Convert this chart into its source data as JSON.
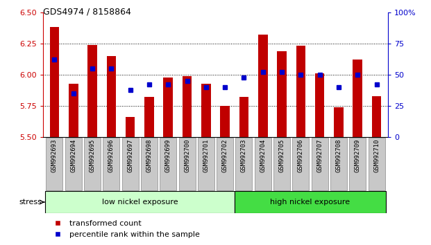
{
  "title": "GDS4974 / 8158864",
  "samples": [
    "GSM992693",
    "GSM992694",
    "GSM992695",
    "GSM992696",
    "GSM992697",
    "GSM992698",
    "GSM992699",
    "GSM992700",
    "GSM992701",
    "GSM992702",
    "GSM992703",
    "GSM992704",
    "GSM992705",
    "GSM992706",
    "GSM992707",
    "GSM992708",
    "GSM992709",
    "GSM992710"
  ],
  "bar_values": [
    6.38,
    5.93,
    6.24,
    6.15,
    5.66,
    5.82,
    5.98,
    5.99,
    5.93,
    5.75,
    5.82,
    6.32,
    6.19,
    6.23,
    6.01,
    5.74,
    6.12,
    5.83
  ],
  "percentile_values": [
    62,
    35,
    55,
    55,
    38,
    42,
    42,
    45,
    40,
    40,
    48,
    52,
    52,
    50,
    50,
    40,
    50,
    42
  ],
  "bar_color": "#C00000",
  "dot_color": "#0000CC",
  "ylim_left": [
    5.5,
    6.5
  ],
  "ylim_right": [
    0,
    100
  ],
  "yticks_left": [
    5.5,
    5.75,
    6.0,
    6.25,
    6.5
  ],
  "yticks_right": [
    0,
    25,
    50,
    75,
    100
  ],
  "ytick_right_labels": [
    "0",
    "25",
    "50",
    "75",
    "100%"
  ],
  "grid_values": [
    5.75,
    6.0,
    6.25
  ],
  "low_label": "low nickel exposure",
  "high_label": "high nickel exposure",
  "low_count": 10,
  "stress_label": "stress",
  "legend_bar": "transformed count",
  "legend_dot": "percentile rank within the sample",
  "background_color": "#ffffff",
  "bar_width": 0.5,
  "low_bg": "#CCFFCC",
  "high_bg": "#44DD44",
  "xtick_bg": "#C8C8C8",
  "xtick_border": "#888888"
}
